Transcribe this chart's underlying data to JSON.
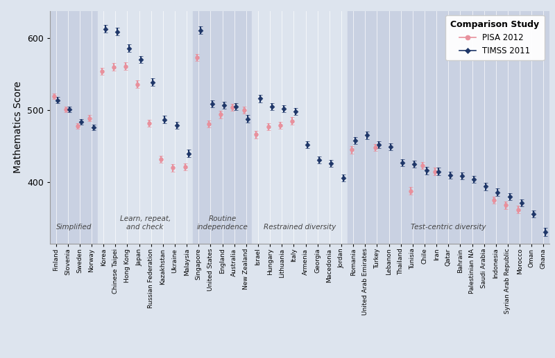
{
  "countries": [
    "Finland",
    "Slovenia",
    "Sweden",
    "Norway",
    "Korea",
    "Chinese Taipei",
    "Hong Kong",
    "Japan",
    "Russian Federation",
    "Kazakhstan",
    "Ukraine",
    "Malaysia",
    "Singapore",
    "United States",
    "England",
    "Australia",
    "New Zealand",
    "Israel",
    "Hungary",
    "Lithuania",
    "Italy",
    "Armenia",
    "Georgia",
    "Macedonia",
    "Jordan",
    "Romania",
    "United Arab Emirates",
    "Turkey",
    "Lebanon",
    "Thailand",
    "Tunisia",
    "Chile",
    "Iran",
    "Qatar",
    "Bahrain",
    "Palestinian NA",
    "Saudi Arabia",
    "Indonesia",
    "Syrian Arab Republic",
    "Morocco",
    "Oman",
    "Ghana"
  ],
  "pisa": [
    519,
    501,
    478,
    489,
    554,
    560,
    561,
    536,
    482,
    432,
    420,
    421,
    573,
    481,
    494,
    504,
    500,
    466,
    477,
    479,
    485,
    null,
    null,
    null,
    null,
    445,
    null,
    448,
    null,
    null,
    388,
    423,
    415,
    null,
    null,
    null,
    null,
    375,
    368,
    362,
    null,
    null
  ],
  "pisa_lo": [
    515,
    497,
    474,
    485,
    549,
    555,
    556,
    531,
    477,
    427,
    415,
    416,
    568,
    476,
    489,
    499,
    495,
    461,
    472,
    474,
    480,
    null,
    null,
    null,
    null,
    440,
    null,
    443,
    null,
    null,
    383,
    418,
    410,
    null,
    null,
    null,
    null,
    370,
    363,
    357,
    null,
    null
  ],
  "pisa_hi": [
    523,
    505,
    482,
    493,
    559,
    565,
    566,
    541,
    487,
    437,
    425,
    426,
    578,
    486,
    499,
    509,
    505,
    471,
    482,
    484,
    490,
    null,
    null,
    null,
    null,
    450,
    null,
    453,
    null,
    null,
    393,
    428,
    420,
    null,
    null,
    null,
    null,
    380,
    373,
    367,
    null,
    null
  ],
  "timss": [
    514,
    501,
    484,
    476,
    613,
    609,
    586,
    570,
    539,
    487,
    479,
    440,
    611,
    509,
    507,
    505,
    488,
    516,
    505,
    502,
    498,
    452,
    431,
    426,
    406,
    458,
    465,
    452,
    449,
    427,
    425,
    416,
    415,
    410,
    409,
    404,
    394,
    386,
    380,
    371,
    356,
    331
  ],
  "timss_lo": [
    510,
    497,
    480,
    472,
    608,
    604,
    581,
    565,
    534,
    482,
    474,
    435,
    606,
    504,
    502,
    500,
    483,
    511,
    500,
    497,
    493,
    447,
    426,
    421,
    401,
    453,
    460,
    447,
    444,
    422,
    420,
    411,
    410,
    405,
    404,
    399,
    389,
    381,
    375,
    366,
    351,
    325
  ],
  "timss_hi": [
    518,
    505,
    488,
    480,
    618,
    614,
    591,
    575,
    544,
    492,
    484,
    445,
    616,
    514,
    512,
    510,
    493,
    521,
    510,
    507,
    503,
    457,
    436,
    431,
    411,
    463,
    470,
    457,
    454,
    432,
    430,
    421,
    420,
    415,
    414,
    409,
    399,
    391,
    385,
    376,
    361,
    337
  ],
  "groups": [
    {
      "name": "Simplified",
      "start": 0,
      "end": 4,
      "shade": true
    },
    {
      "name": "Learn, repeat,\nand check",
      "start": 4,
      "end": 12,
      "shade": false
    },
    {
      "name": "Routine\nindependence",
      "start": 12,
      "end": 17,
      "shade": true
    },
    {
      "name": "Restrained diversity",
      "start": 17,
      "end": 25,
      "shade": false
    },
    {
      "name": "Test-centric diversity",
      "start": 25,
      "end": 42,
      "shade": true
    }
  ],
  "shade_dark": "#c9d1e2",
  "shade_light": "#dde4ee",
  "bg_color": "#dde4ee",
  "pisa_color": "#e8909c",
  "timss_color": "#1e3668",
  "ylabel": "Mathematics Score",
  "ylim": [
    315,
    638
  ],
  "yticks": [
    400,
    500,
    600
  ],
  "legend_title": "Comparison Study",
  "legend_pisa": "PISA 2012",
  "legend_timss": "TIMSS 2011"
}
